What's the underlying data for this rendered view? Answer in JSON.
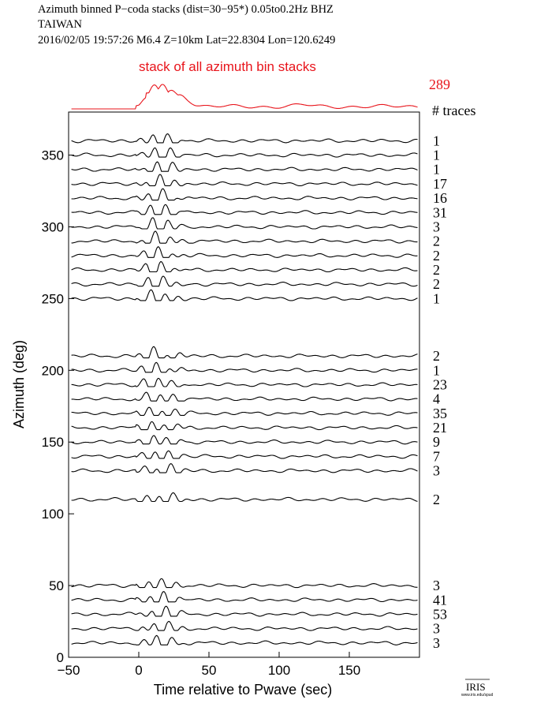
{
  "header": {
    "line1": "Azimuth binned P−coda stacks (dist=30−95*)  0.05to0.2Hz  BHZ",
    "line2": "TAIWAN",
    "line3": "2016/02/05  19:57:26  M6.4  Z=10km Lat=22.8304 Lon=120.6249"
  },
  "logo": {
    "text": "IRIS",
    "url_text": "www.iris.edu/spud"
  },
  "colors": {
    "stack": "#e8141b",
    "trace": "#000000"
  },
  "chart_data": {
    "type": "line",
    "title": "Azimuth binned P−coda stacks (dist=30−95*)  0.05to0.2Hz  BHZ",
    "xlabel": "Time relative to Pwave (sec)",
    "ylabel": "Azimuth (deg)",
    "xlim": [
      -50,
      200
    ],
    "ylim": [
      0,
      380
    ],
    "x_ticks": [
      -50,
      0,
      50,
      100,
      150
    ],
    "y_ticks": [
      0,
      50,
      100,
      150,
      200,
      250,
      300,
      350
    ],
    "grid": false,
    "summary_stack": {
      "label": "stack of all azimuth bin stacks",
      "trace_count": "289",
      "count_header": "# traces"
    },
    "traces": [
      {
        "azimuth": 360,
        "count": "1"
      },
      {
        "azimuth": 350,
        "count": "1"
      },
      {
        "azimuth": 340,
        "count": "1"
      },
      {
        "azimuth": 330,
        "count": "17"
      },
      {
        "azimuth": 320,
        "count": "16"
      },
      {
        "azimuth": 310,
        "count": "31"
      },
      {
        "azimuth": 300,
        "count": "3"
      },
      {
        "azimuth": 290,
        "count": "2"
      },
      {
        "azimuth": 280,
        "count": "2"
      },
      {
        "azimuth": 270,
        "count": "2"
      },
      {
        "azimuth": 260,
        "count": "2"
      },
      {
        "azimuth": 250,
        "count": "1"
      },
      {
        "azimuth": 210,
        "count": "2"
      },
      {
        "azimuth": 200,
        "count": "1"
      },
      {
        "azimuth": 190,
        "count": "23"
      },
      {
        "azimuth": 180,
        "count": "4"
      },
      {
        "azimuth": 170,
        "count": "35"
      },
      {
        "azimuth": 160,
        "count": "21"
      },
      {
        "azimuth": 150,
        "count": "9"
      },
      {
        "azimuth": 140,
        "count": "7"
      },
      {
        "azimuth": 130,
        "count": "3"
      },
      {
        "azimuth": 110,
        "count": "2"
      },
      {
        "azimuth": 50,
        "count": "3"
      },
      {
        "azimuth": 40,
        "count": "41"
      },
      {
        "azimuth": 30,
        "count": "53"
      },
      {
        "azimuth": 20,
        "count": "3"
      },
      {
        "azimuth": 10,
        "count": "3"
      }
    ]
  }
}
